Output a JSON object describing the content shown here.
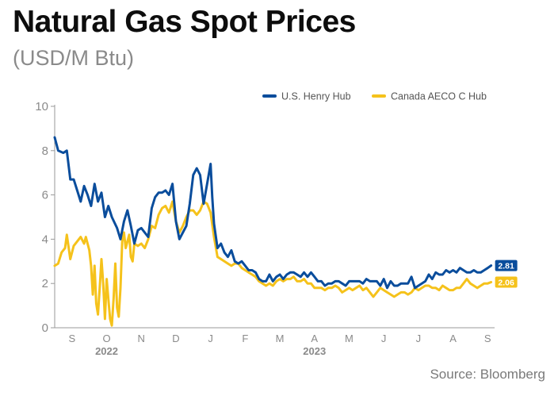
{
  "header": {
    "title": "Natural Gas Spot Prices",
    "subtitle": "(USD/M Btu)"
  },
  "footer": {
    "source": "Source: Bloomberg"
  },
  "colors": {
    "henry_hub": "#0a4d9c",
    "aeco": "#f5c21b",
    "axis": "#9a9a9a"
  },
  "chart_data": {
    "type": "line",
    "title": "Natural Gas Spot Prices",
    "subtitle": "(USD/M Btu)",
    "xlabel": "",
    "ylabel": "",
    "ylim": [
      0,
      10
    ],
    "yticks": [
      "0",
      "2",
      "4",
      "6",
      "8",
      "10"
    ],
    "xlim": [
      0.0,
      12.7
    ],
    "xticks": [
      "S",
      "O",
      "N",
      "D",
      "J",
      "F",
      "M",
      "A",
      "M",
      "J",
      "J",
      "A",
      "S"
    ],
    "year_labels": [
      {
        "label": "2022",
        "x": 1.5
      },
      {
        "label": "2023",
        "x": 7.5
      }
    ],
    "legend_position": "top-right",
    "grid": false,
    "series": [
      {
        "name": "U.S. Henry Hub",
        "end_label": "2.81",
        "points": [
          [
            0.0,
            8.6
          ],
          [
            0.1,
            8.0
          ],
          [
            0.25,
            7.9
          ],
          [
            0.35,
            8.0
          ],
          [
            0.45,
            6.7
          ],
          [
            0.55,
            6.7
          ],
          [
            0.65,
            6.2
          ],
          [
            0.75,
            5.7
          ],
          [
            0.85,
            6.4
          ],
          [
            0.95,
            6.0
          ],
          [
            1.05,
            5.5
          ],
          [
            1.15,
            6.5
          ],
          [
            1.25,
            5.7
          ],
          [
            1.35,
            6.1
          ],
          [
            1.45,
            5.0
          ],
          [
            1.55,
            5.5
          ],
          [
            1.65,
            5.0
          ],
          [
            1.8,
            4.5
          ],
          [
            1.9,
            4.0
          ],
          [
            2.0,
            4.8
          ],
          [
            2.1,
            5.3
          ],
          [
            2.2,
            4.6
          ],
          [
            2.3,
            3.8
          ],
          [
            2.4,
            4.4
          ],
          [
            2.5,
            4.5
          ],
          [
            2.6,
            4.3
          ],
          [
            2.7,
            4.1
          ],
          [
            2.8,
            5.4
          ],
          [
            2.9,
            5.9
          ],
          [
            3.0,
            6.1
          ],
          [
            3.1,
            6.1
          ],
          [
            3.2,
            6.2
          ],
          [
            3.3,
            6.0
          ],
          [
            3.4,
            6.5
          ],
          [
            3.5,
            4.8
          ],
          [
            3.6,
            4.0
          ],
          [
            3.7,
            4.3
          ],
          [
            3.8,
            4.6
          ],
          [
            3.9,
            5.6
          ],
          [
            4.0,
            6.9
          ],
          [
            4.1,
            7.2
          ],
          [
            4.2,
            6.9
          ],
          [
            4.3,
            5.6
          ],
          [
            4.4,
            6.5
          ],
          [
            4.5,
            7.4
          ],
          [
            4.55,
            5.9
          ],
          [
            4.6,
            4.7
          ],
          [
            4.7,
            3.6
          ],
          [
            4.8,
            3.8
          ],
          [
            4.9,
            3.4
          ],
          [
            5.0,
            3.2
          ],
          [
            5.1,
            3.5
          ],
          [
            5.2,
            3.0
          ],
          [
            5.3,
            2.9
          ],
          [
            5.4,
            3.0
          ],
          [
            5.5,
            2.8
          ],
          [
            5.6,
            2.6
          ],
          [
            5.7,
            2.6
          ],
          [
            5.8,
            2.5
          ],
          [
            5.9,
            2.2
          ],
          [
            6.0,
            2.1
          ],
          [
            6.1,
            2.1
          ],
          [
            6.2,
            2.4
          ],
          [
            6.3,
            2.1
          ],
          [
            6.4,
            2.3
          ],
          [
            6.5,
            2.4
          ],
          [
            6.6,
            2.2
          ],
          [
            6.7,
            2.4
          ],
          [
            6.8,
            2.5
          ],
          [
            6.9,
            2.5
          ],
          [
            7.0,
            2.4
          ],
          [
            7.1,
            2.3
          ],
          [
            7.2,
            2.5
          ],
          [
            7.3,
            2.3
          ],
          [
            7.4,
            2.5
          ],
          [
            7.5,
            2.3
          ],
          [
            7.6,
            2.1
          ],
          [
            7.7,
            2.1
          ],
          [
            7.8,
            1.9
          ],
          [
            7.9,
            2.0
          ],
          [
            8.0,
            2.0
          ],
          [
            8.1,
            2.1
          ],
          [
            8.2,
            2.1
          ],
          [
            8.3,
            2.0
          ],
          [
            8.4,
            1.9
          ],
          [
            8.5,
            2.1
          ],
          [
            8.6,
            2.1
          ],
          [
            8.7,
            2.1
          ],
          [
            8.8,
            2.1
          ],
          [
            8.9,
            2.0
          ],
          [
            9.0,
            2.2
          ],
          [
            9.1,
            2.1
          ],
          [
            9.2,
            2.1
          ],
          [
            9.3,
            2.1
          ],
          [
            9.4,
            1.9
          ],
          [
            9.5,
            2.2
          ],
          [
            9.6,
            1.8
          ],
          [
            9.7,
            2.1
          ],
          [
            9.8,
            1.9
          ],
          [
            9.9,
            1.9
          ],
          [
            10.0,
            2.0
          ],
          [
            10.1,
            2.0
          ],
          [
            10.2,
            2.0
          ],
          [
            10.3,
            2.3
          ],
          [
            10.4,
            1.8
          ],
          [
            10.5,
            1.9
          ],
          [
            10.6,
            2.0
          ],
          [
            10.7,
            2.1
          ],
          [
            10.8,
            2.4
          ],
          [
            10.9,
            2.2
          ],
          [
            11.0,
            2.5
          ],
          [
            11.1,
            2.4
          ],
          [
            11.2,
            2.4
          ],
          [
            11.3,
            2.6
          ],
          [
            11.4,
            2.5
          ],
          [
            11.5,
            2.6
          ],
          [
            11.6,
            2.5
          ],
          [
            11.7,
            2.7
          ],
          [
            11.8,
            2.6
          ],
          [
            11.9,
            2.5
          ],
          [
            12.0,
            2.5
          ],
          [
            12.1,
            2.6
          ],
          [
            12.2,
            2.5
          ],
          [
            12.3,
            2.5
          ],
          [
            12.4,
            2.6
          ],
          [
            12.5,
            2.7
          ],
          [
            12.6,
            2.81
          ]
        ]
      },
      {
        "name": "Canada AECO C Hub",
        "end_label": "2.06",
        "points": [
          [
            0.0,
            2.8
          ],
          [
            0.1,
            2.9
          ],
          [
            0.2,
            3.4
          ],
          [
            0.3,
            3.6
          ],
          [
            0.35,
            4.2
          ],
          [
            0.45,
            3.1
          ],
          [
            0.55,
            3.7
          ],
          [
            0.65,
            3.9
          ],
          [
            0.75,
            4.1
          ],
          [
            0.85,
            3.8
          ],
          [
            0.9,
            4.1
          ],
          [
            1.0,
            3.5
          ],
          [
            1.05,
            2.8
          ],
          [
            1.1,
            1.5
          ],
          [
            1.15,
            2.8
          ],
          [
            1.2,
            1.1
          ],
          [
            1.25,
            0.6
          ],
          [
            1.3,
            1.8
          ],
          [
            1.35,
            3.1
          ],
          [
            1.4,
            2.0
          ],
          [
            1.45,
            0.4
          ],
          [
            1.5,
            2.2
          ],
          [
            1.55,
            1.3
          ],
          [
            1.6,
            0.4
          ],
          [
            1.65,
            0.1
          ],
          [
            1.7,
            1.3
          ],
          [
            1.75,
            2.9
          ],
          [
            1.8,
            0.9
          ],
          [
            1.85,
            0.5
          ],
          [
            1.9,
            1.8
          ],
          [
            1.95,
            3.9
          ],
          [
            2.0,
            4.3
          ],
          [
            2.05,
            3.6
          ],
          [
            2.1,
            3.9
          ],
          [
            2.15,
            4.2
          ],
          [
            2.2,
            3.2
          ],
          [
            2.25,
            3.0
          ],
          [
            2.3,
            3.8
          ],
          [
            2.4,
            3.7
          ],
          [
            2.5,
            3.8
          ],
          [
            2.6,
            3.6
          ],
          [
            2.7,
            4.0
          ],
          [
            2.8,
            4.6
          ],
          [
            2.9,
            4.5
          ],
          [
            3.0,
            5.1
          ],
          [
            3.1,
            5.4
          ],
          [
            3.2,
            5.5
          ],
          [
            3.3,
            5.2
          ],
          [
            3.4,
            5.7
          ],
          [
            3.5,
            4.8
          ],
          [
            3.6,
            4.3
          ],
          [
            3.7,
            4.6
          ],
          [
            3.8,
            5.0
          ],
          [
            3.9,
            5.3
          ],
          [
            4.0,
            5.3
          ],
          [
            4.1,
            5.1
          ],
          [
            4.2,
            5.3
          ],
          [
            4.3,
            5.7
          ],
          [
            4.4,
            5.6
          ],
          [
            4.5,
            5.2
          ],
          [
            4.6,
            4.1
          ],
          [
            4.7,
            3.2
          ],
          [
            4.8,
            3.1
          ],
          [
            4.9,
            3.0
          ],
          [
            5.0,
            2.9
          ],
          [
            5.1,
            2.8
          ],
          [
            5.2,
            2.9
          ],
          [
            5.3,
            2.9
          ],
          [
            5.4,
            2.7
          ],
          [
            5.5,
            2.6
          ],
          [
            5.6,
            2.5
          ],
          [
            5.7,
            2.4
          ],
          [
            5.8,
            2.3
          ],
          [
            5.9,
            2.1
          ],
          [
            6.0,
            2.0
          ],
          [
            6.1,
            1.9
          ],
          [
            6.2,
            2.0
          ],
          [
            6.3,
            1.9
          ],
          [
            6.4,
            2.1
          ],
          [
            6.5,
            2.2
          ],
          [
            6.6,
            2.1
          ],
          [
            6.7,
            2.2
          ],
          [
            6.8,
            2.2
          ],
          [
            6.9,
            2.3
          ],
          [
            7.0,
            2.1
          ],
          [
            7.1,
            2.1
          ],
          [
            7.2,
            2.2
          ],
          [
            7.3,
            2.0
          ],
          [
            7.4,
            2.0
          ],
          [
            7.5,
            1.8
          ],
          [
            7.6,
            1.8
          ],
          [
            7.7,
            1.8
          ],
          [
            7.8,
            1.7
          ],
          [
            7.9,
            1.8
          ],
          [
            8.0,
            1.8
          ],
          [
            8.1,
            1.9
          ],
          [
            8.2,
            1.8
          ],
          [
            8.3,
            1.6
          ],
          [
            8.4,
            1.7
          ],
          [
            8.5,
            1.8
          ],
          [
            8.6,
            1.7
          ],
          [
            8.7,
            1.8
          ],
          [
            8.8,
            1.9
          ],
          [
            8.9,
            1.7
          ],
          [
            9.0,
            1.8
          ],
          [
            9.1,
            1.6
          ],
          [
            9.2,
            1.4
          ],
          [
            9.3,
            1.6
          ],
          [
            9.4,
            1.8
          ],
          [
            9.5,
            1.7
          ],
          [
            9.6,
            1.6
          ],
          [
            9.7,
            1.5
          ],
          [
            9.8,
            1.4
          ],
          [
            9.9,
            1.5
          ],
          [
            10.0,
            1.6
          ],
          [
            10.1,
            1.6
          ],
          [
            10.2,
            1.5
          ],
          [
            10.3,
            1.6
          ],
          [
            10.4,
            1.8
          ],
          [
            10.5,
            1.7
          ],
          [
            10.6,
            1.8
          ],
          [
            10.7,
            1.9
          ],
          [
            10.8,
            1.9
          ],
          [
            10.9,
            1.8
          ],
          [
            11.0,
            1.8
          ],
          [
            11.1,
            1.7
          ],
          [
            11.2,
            1.9
          ],
          [
            11.3,
            1.8
          ],
          [
            11.4,
            1.7
          ],
          [
            11.5,
            1.7
          ],
          [
            11.6,
            1.8
          ],
          [
            11.7,
            1.8
          ],
          [
            11.8,
            2.0
          ],
          [
            11.9,
            2.2
          ],
          [
            12.0,
            2.0
          ],
          [
            12.1,
            1.9
          ],
          [
            12.2,
            1.8
          ],
          [
            12.3,
            1.9
          ],
          [
            12.4,
            2.0
          ],
          [
            12.5,
            2.0
          ],
          [
            12.6,
            2.06
          ]
        ]
      }
    ]
  }
}
